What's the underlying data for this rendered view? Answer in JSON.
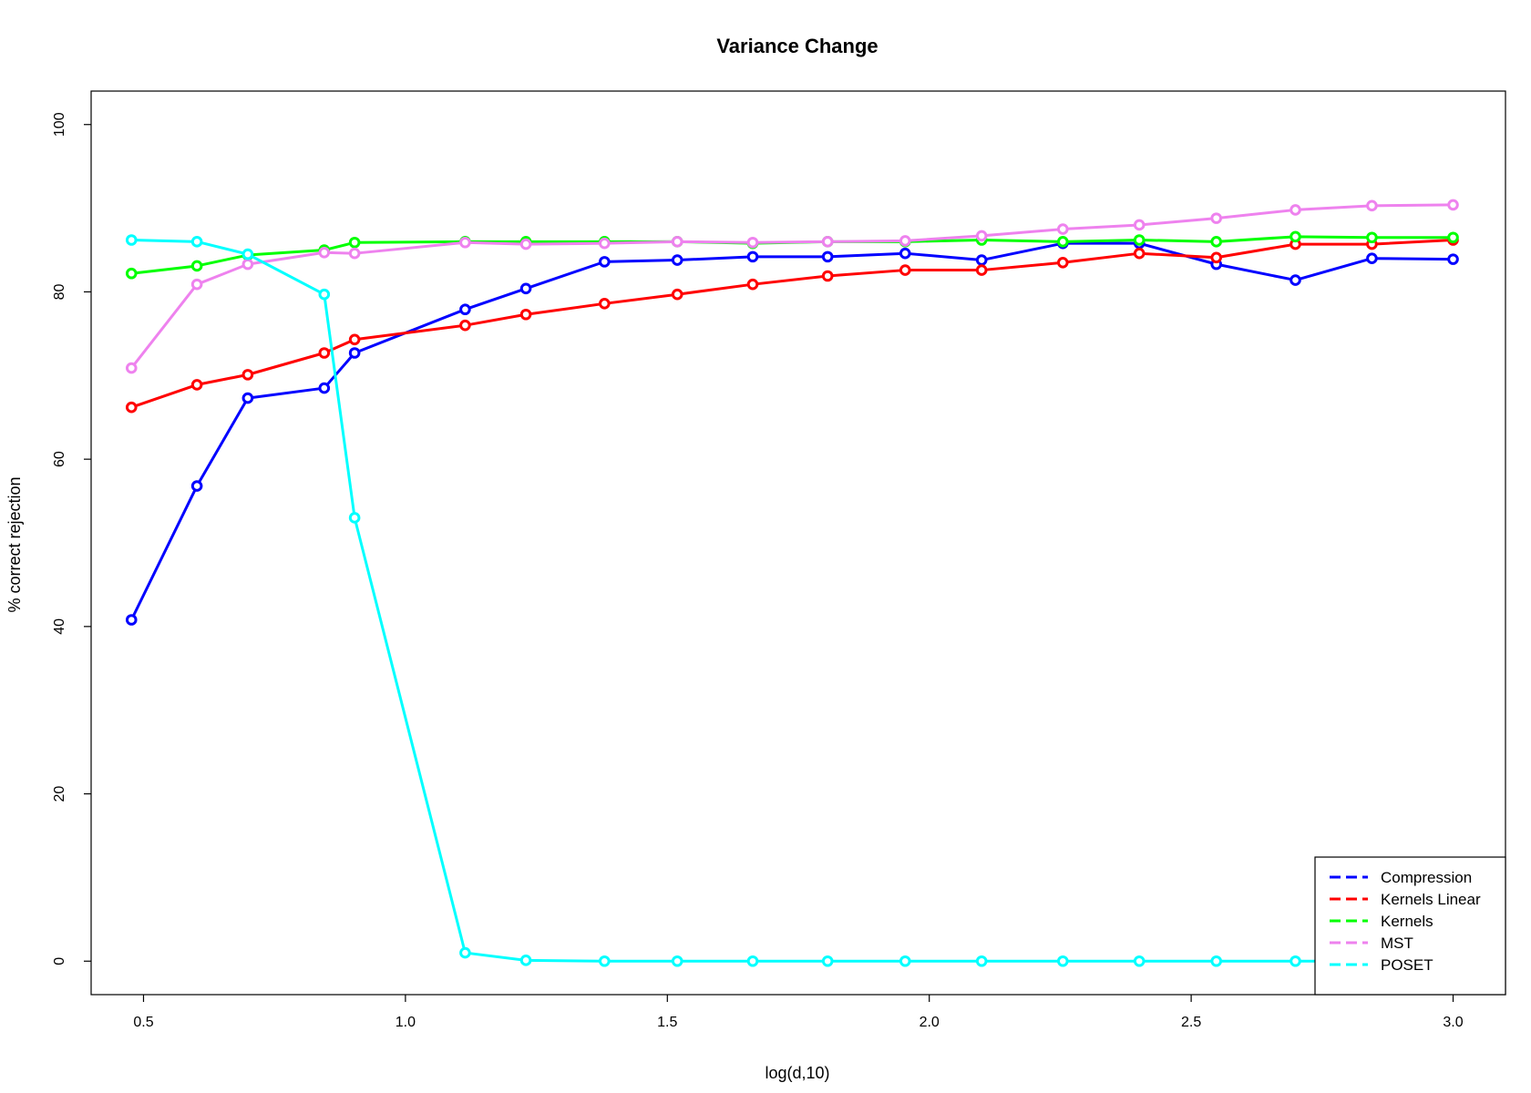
{
  "chart_data": {
    "type": "line",
    "title": "Variance Change",
    "xlabel": "log(d,10)",
    "ylabel": "% correct rejection",
    "xlim": [
      0.4,
      3.1
    ],
    "ylim": [
      -4,
      104
    ],
    "xticks": [
      0.5,
      1.0,
      1.5,
      2.0,
      2.5,
      3.0
    ],
    "xtick_labels": [
      "0.5",
      "1.0",
      "1.5",
      "2.0",
      "2.5",
      "3.0"
    ],
    "yticks": [
      0,
      20,
      40,
      60,
      80,
      100
    ],
    "ytick_labels": [
      "0",
      "20",
      "40",
      "60",
      "80",
      "100"
    ],
    "grid": false,
    "legend_position": "bottom-right",
    "x": [
      0.477,
      0.602,
      0.699,
      0.845,
      0.903,
      1.114,
      1.23,
      1.38,
      1.519,
      1.663,
      1.806,
      1.954,
      2.1,
      2.255,
      2.401,
      2.548,
      2.699,
      2.845,
      3.0
    ],
    "series": [
      {
        "name": "Compression",
        "color": "#0000ff",
        "values": [
          40.8,
          56.8,
          67.3,
          68.5,
          72.7,
          77.9,
          80.4,
          83.6,
          83.8,
          84.2,
          84.2,
          84.6,
          83.8,
          85.8,
          85.8,
          83.3,
          81.4,
          84.0,
          83.9
        ]
      },
      {
        "name": "Kernels Linear",
        "color": "#ff0000",
        "values": [
          66.2,
          68.9,
          70.1,
          72.7,
          74.3,
          76.0,
          77.3,
          78.6,
          79.7,
          80.9,
          81.9,
          82.6,
          82.6,
          83.5,
          84.6,
          84.1,
          85.7,
          85.7,
          86.2
        ]
      },
      {
        "name": "Kernels",
        "color": "#00ff00",
        "values": [
          82.2,
          83.1,
          84.4,
          85.0,
          85.9,
          86.0,
          86.0,
          86.0,
          86.0,
          85.8,
          86.0,
          86.0,
          86.2,
          86.0,
          86.2,
          86.0,
          86.6,
          86.5,
          86.5
        ]
      },
      {
        "name": "MST",
        "color": "#ee82ee",
        "values": [
          70.9,
          80.9,
          83.3,
          84.7,
          84.6,
          85.9,
          85.7,
          85.8,
          86.0,
          85.9,
          86.0,
          86.1,
          86.7,
          87.5,
          88.0,
          88.8,
          89.8,
          90.3,
          90.4
        ]
      },
      {
        "name": "POSET",
        "color": "#00ffff",
        "values": [
          86.2,
          86.0,
          84.5,
          79.7,
          53.0,
          1.0,
          0.1,
          0.0,
          0.0,
          0.0,
          0.0,
          0.0,
          0.0,
          0.0,
          0.0,
          0.0,
          0.0,
          0.0,
          0.0
        ]
      }
    ]
  }
}
